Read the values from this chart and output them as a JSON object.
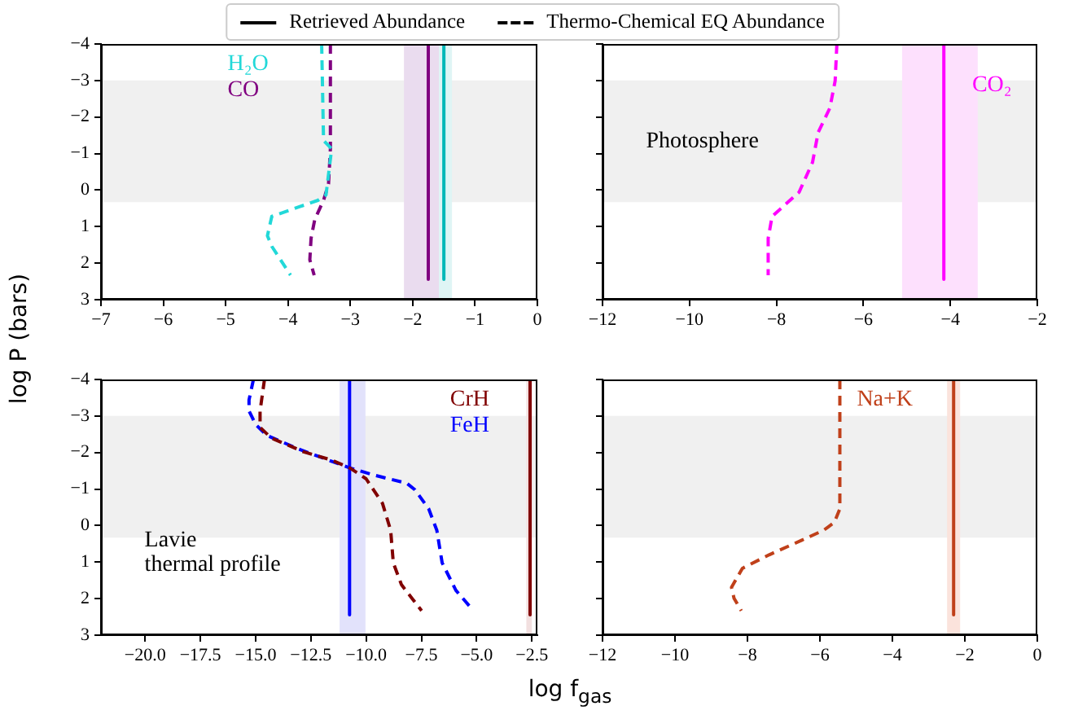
{
  "chart_data": [
    {
      "type": "line",
      "ylabel": "log P (bars)",
      "legend": "top",
      "xlim": [
        -7,
        0
      ],
      "ylim": [
        3,
        -4
      ],
      "xticks": [
        {
          "value": -7,
          "label": "−7"
        },
        {
          "value": -6,
          "label": "−6"
        },
        {
          "value": -5,
          "label": "−5"
        },
        {
          "value": -4,
          "label": "−4"
        },
        {
          "value": -3,
          "label": "−3"
        },
        {
          "value": -2,
          "label": "−2"
        },
        {
          "value": -1,
          "label": "−1"
        },
        0
      ],
      "yticks": [
        {
          "value": -4,
          "label": "−4"
        },
        {
          "value": -3,
          "label": "−3"
        },
        {
          "value": -2,
          "label": "−2"
        },
        {
          "value": -1,
          "label": "−1"
        },
        0,
        1,
        2,
        3
      ],
      "bands": [
        {
          "axis": "y",
          "from": -3,
          "to": 0.33,
          "color": "#f0f0f0"
        },
        {
          "axis": "x",
          "from": -2.14,
          "to": -1.48,
          "color": "#eadcef"
        },
        {
          "axis": "x",
          "from": -1.58,
          "to": -1.37,
          "color": "#dff5f5"
        }
      ],
      "series": [
        {
          "name": "Retrieved Abundance",
          "color": "#000000",
          "line_style": "solid"
        },
        {
          "name": "Thermo-Chemical EQ Abundance",
          "color": "#000000",
          "line_style": "dashed"
        },
        {
          "name": "H₂O",
          "color": "#22d8d8",
          "line_style": "dashed",
          "x": [
            -3.46,
            -3.43,
            -3.3,
            -3.39,
            -3.52,
            -4.26,
            -4.33,
            -4.26,
            -3.96
          ],
          "values": [
            -4,
            -1.36,
            -1.13,
            0.13,
            0.28,
            0.72,
            1.25,
            1.54,
            2.33
          ]
        },
        {
          "color": "#00b8b8",
          "line_style": "solid",
          "x": [
            -1.5,
            -1.5
          ],
          "values": [
            -4,
            2.44
          ]
        },
        {
          "name": "CO",
          "color": "#800080",
          "line_style": "dashed",
          "x": [
            -3.32,
            -3.32,
            -3.35,
            -3.43,
            -3.57,
            -3.63,
            -3.65,
            -3.58
          ],
          "values": [
            -4,
            -1.13,
            -0.17,
            0.28,
            0.8,
            1.32,
            1.91,
            2.33
          ]
        },
        {
          "color": "#800080",
          "line_style": "solid",
          "x": [
            -1.75,
            -1.75
          ],
          "values": [
            -4,
            2.44
          ]
        }
      ]
    },
    {
      "type": "line",
      "tick_labels": "x",
      "xlim": [
        -12,
        -2
      ],
      "ylim": [
        3,
        -4
      ],
      "xticks": [
        {
          "value": -12,
          "label": "−12"
        },
        {
          "value": -10,
          "label": "−10"
        },
        {
          "value": -8,
          "label": "−8"
        },
        {
          "value": -6,
          "label": "−6"
        },
        {
          "value": -4,
          "label": "−4"
        },
        {
          "value": -2,
          "label": "−2"
        }
      ],
      "yticks": [
        -4,
        -3,
        -2,
        -1,
        0,
        1,
        2,
        3
      ],
      "bands": [
        {
          "axis": "y",
          "from": -3,
          "to": 0.33,
          "color": "#f0f0f0",
          "label": "Photosphere"
        },
        {
          "axis": "x",
          "from": -5.11,
          "to": -3.37,
          "color": "#fde0fd"
        }
      ],
      "series": [
        {
          "name": "CO₂",
          "color": "#ff00ff",
          "line_style": "dashed",
          "x": [
            -6.61,
            -6.65,
            -6.77,
            -7.04,
            -7.17,
            -7.48,
            -8.1,
            -8.19,
            -8.19
          ],
          "values": [
            -4,
            -2.99,
            -2.25,
            -1.58,
            -0.76,
            0.06,
            0.72,
            1.32,
            2.33
          ]
        },
        {
          "color": "#ff00ff",
          "line_style": "solid",
          "x": [
            -4.15,
            -4.15
          ],
          "values": [
            -4,
            2.44
          ]
        }
      ]
    },
    {
      "type": "line",
      "xlabel": "log f$_{gas}$",
      "annotations": [
        "Lavie\nthermal profile"
      ],
      "xlim": [
        -22,
        -2.25
      ],
      "ylim": [
        3,
        -4
      ],
      "xticks": [
        {
          "value": -20,
          "label": "−20.0"
        },
        {
          "value": -17.5,
          "label": "−17.5"
        },
        {
          "value": -15,
          "label": "−15.0"
        },
        {
          "value": -12.5,
          "label": "−12.5"
        },
        {
          "value": -10,
          "label": "−10.0"
        },
        {
          "value": -7.5,
          "label": "−7.5"
        },
        {
          "value": -5,
          "label": "−5.0"
        },
        {
          "value": -2.5,
          "label": "−2.5"
        }
      ],
      "yticks": [
        {
          "value": -4,
          "label": "−4"
        },
        {
          "value": -3,
          "label": "−3"
        },
        {
          "value": -2,
          "label": "−2"
        },
        {
          "value": -1,
          "label": "−1"
        },
        0,
        1,
        2,
        3
      ],
      "bands": [
        {
          "axis": "y",
          "from": -3,
          "to": 0.33,
          "color": "#f0f0f0"
        },
        {
          "axis": "x",
          "from": -11.2,
          "to": -10.03,
          "color": "#e2e2fb"
        },
        {
          "axis": "x",
          "from": -2.75,
          "to": -2.5,
          "color": "#f2e0e0"
        }
      ],
      "series": [
        {
          "name": "CrH",
          "color": "#800000",
          "line_style": "dashed",
          "x": [
            -14.6,
            -14.8,
            -14.8,
            -14.3,
            -12.83,
            -11.6,
            -10.74,
            -10,
            -9.26,
            -8.89,
            -8.77,
            -8.4,
            -7.49
          ],
          "values": [
            -4,
            -3.14,
            -2.69,
            -2.4,
            -2.02,
            -1.8,
            -1.58,
            -1.28,
            -0.61,
            0.13,
            1.02,
            1.62,
            2.33
          ]
        },
        {
          "color": "#800000",
          "line_style": "solid",
          "x": [
            -2.58,
            -2.58
          ],
          "values": [
            -4,
            2.44
          ]
        },
        {
          "name": "FeH",
          "color": "#0000ff",
          "line_style": "dashed",
          "x": [
            -15.1,
            -15.3,
            -15.3,
            -15,
            -14.5,
            -13.07,
            -11.6,
            -10.74,
            -9.63,
            -8.16,
            -7.79,
            -7.17,
            -6.8,
            -6.56,
            -5.94,
            -5.2
          ],
          "values": [
            -4,
            -3.44,
            -3.14,
            -2.77,
            -2.47,
            -2.1,
            -1.77,
            -1.58,
            -1.38,
            -1.16,
            -0.98,
            -0.46,
            0.13,
            1.02,
            1.77,
            2.29
          ]
        },
        {
          "color": "#0000ff",
          "line_style": "solid",
          "x": [
            -10.75,
            -10.75
          ],
          "values": [
            -4,
            2.44
          ]
        }
      ]
    },
    {
      "type": "line",
      "tick_labels": "x",
      "xlim": [
        -12,
        0
      ],
      "ylim": [
        3,
        -4
      ],
      "xticks": [
        {
          "value": -12,
          "label": "−12"
        },
        {
          "value": -10,
          "label": "−10"
        },
        {
          "value": -8,
          "label": "−8"
        },
        {
          "value": -6,
          "label": "−6"
        },
        {
          "value": -4,
          "label": "−4"
        },
        {
          "value": -2,
          "label": "−2"
        },
        0
      ],
      "yticks": [
        -4,
        -3,
        -2,
        -1,
        0,
        1,
        2,
        3
      ],
      "bands": [
        {
          "axis": "y",
          "from": -3,
          "to": 0.33,
          "color": "#f0f0f0"
        },
        {
          "axis": "x",
          "from": -2.49,
          "to": -2.13,
          "color": "#fbe3dc"
        }
      ],
      "series": [
        {
          "name": "Na+K",
          "color": "#c0401a",
          "line_style": "dashed",
          "x": [
            -5.45,
            -5.45,
            -5.6,
            -5.9,
            -6.5,
            -7.4,
            -8.14,
            -8.44,
            -8.37,
            -8.17
          ],
          "values": [
            -4,
            -0.46,
            -0.09,
            0.13,
            0.4,
            0.8,
            1.17,
            1.69,
            1.99,
            2.33
          ]
        },
        {
          "color": "#c0401a",
          "line_style": "solid",
          "x": [
            -2.31,
            -2.31
          ],
          "values": [
            -4,
            2.44
          ]
        }
      ]
    }
  ]
}
